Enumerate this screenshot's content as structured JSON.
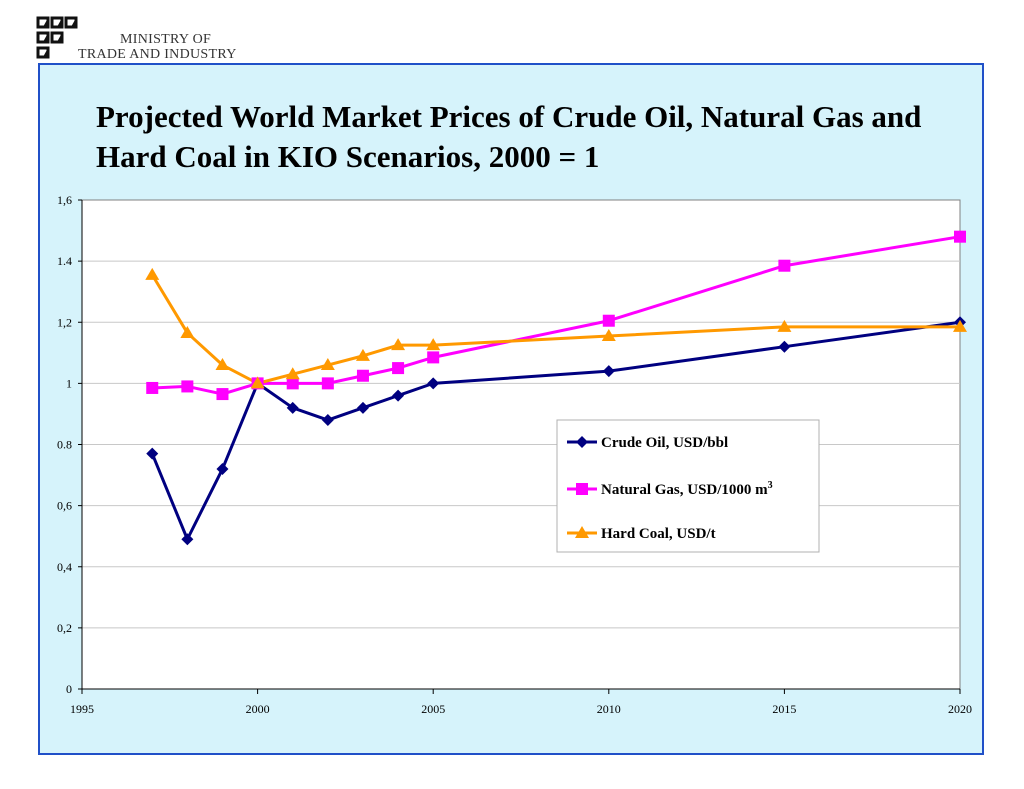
{
  "org": {
    "line1": "MINISTRY OF",
    "line2": "TRADE AND INDUSTRY"
  },
  "chart_data": {
    "type": "line",
    "title": "Projected World Market Prices of Crude Oil, Natural Gas and Hard Coal in KIO Scenarios, 2000 = 1",
    "xlabel": "",
    "ylabel": "",
    "xlim": [
      1995,
      2020
    ],
    "ylim": [
      0,
      1.6
    ],
    "x_ticks": [
      {
        "value": 1995,
        "label": "1995"
      },
      {
        "value": 2000,
        "label": "2000"
      },
      {
        "value": 2005,
        "label": "2005"
      },
      {
        "value": 2010,
        "label": "2010"
      },
      {
        "value": 2015,
        "label": "2015"
      },
      {
        "value": 2020,
        "label": "2020"
      }
    ],
    "y_ticks": [
      {
        "value": 0,
        "label": "0"
      },
      {
        "value": 0.2,
        "label": "0,2"
      },
      {
        "value": 0.4,
        "label": "0,4"
      },
      {
        "value": 0.6,
        "label": "0,6"
      },
      {
        "value": 0.8,
        "label": "0.8"
      },
      {
        "value": 1.0,
        "label": "1"
      },
      {
        "value": 1.2,
        "label": "1,2"
      },
      {
        "value": 1.4,
        "label": "1.4"
      },
      {
        "value": 1.6,
        "label": "1,6"
      }
    ],
    "grid": "horizontal",
    "legend_position": "right",
    "series": [
      {
        "name": "Crude Oil, USD/bbl",
        "color": "#000080",
        "marker": "diamond",
        "points": [
          [
            1997,
            0.77
          ],
          [
            1998,
            0.49
          ],
          [
            1999,
            0.72
          ],
          [
            2000,
            1.0
          ],
          [
            2001,
            0.92
          ],
          [
            2002,
            0.88
          ],
          [
            2003,
            0.92
          ],
          [
            2004,
            0.96
          ],
          [
            2005,
            1.0
          ],
          [
            2010,
            1.04
          ],
          [
            2015,
            1.12
          ],
          [
            2020,
            1.2
          ]
        ]
      },
      {
        "name": "Natural Gas, USD/1000 m",
        "name_sup": "3",
        "color": "#ff00ff",
        "marker": "square",
        "points": [
          [
            1997,
            0.985
          ],
          [
            1998,
            0.99
          ],
          [
            1999,
            0.965
          ],
          [
            2000,
            1.0
          ],
          [
            2001,
            1.0
          ],
          [
            2002,
            1.0
          ],
          [
            2003,
            1.025
          ],
          [
            2004,
            1.05
          ],
          [
            2005,
            1.085
          ],
          [
            2010,
            1.205
          ],
          [
            2015,
            1.385
          ],
          [
            2020,
            1.48
          ]
        ]
      },
      {
        "name": "Hard Coal, USD/t",
        "color": "#ff9900",
        "marker": "triangle",
        "points": [
          [
            1997,
            1.355
          ],
          [
            1998,
            1.165
          ],
          [
            1999,
            1.06
          ],
          [
            2000,
            1.0
          ],
          [
            2001,
            1.03
          ],
          [
            2002,
            1.06
          ],
          [
            2003,
            1.09
          ],
          [
            2004,
            1.125
          ],
          [
            2005,
            1.125
          ],
          [
            2010,
            1.155
          ],
          [
            2015,
            1.185
          ],
          [
            2020,
            1.185
          ]
        ]
      }
    ]
  }
}
